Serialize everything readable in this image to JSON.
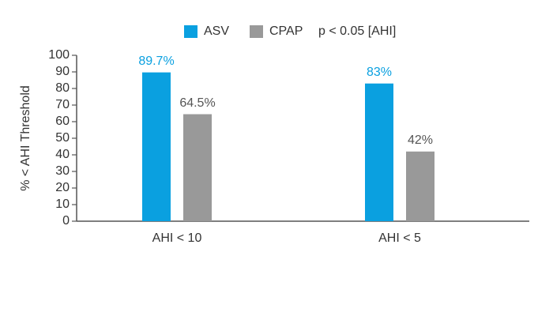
{
  "chart_data": {
    "type": "bar",
    "y_label": "% < AHI Threshold",
    "annotation": "p < 0.05 [AHI]",
    "categories": [
      "AHI < 10",
      "AHI < 5"
    ],
    "series": [
      {
        "name": "ASV",
        "color": "#0aa0e0",
        "values": [
          89.7,
          83
        ],
        "value_labels": [
          "89.7%",
          "83%"
        ]
      },
      {
        "name": "CPAP",
        "color": "#999999",
        "values": [
          64.5,
          42
        ],
        "value_labels": [
          "64.5%",
          "42%"
        ]
      }
    ],
    "ylim": [
      0,
      100
    ],
    "yticks": [
      0,
      10,
      20,
      30,
      40,
      50,
      60,
      70,
      80,
      90,
      100
    ]
  }
}
